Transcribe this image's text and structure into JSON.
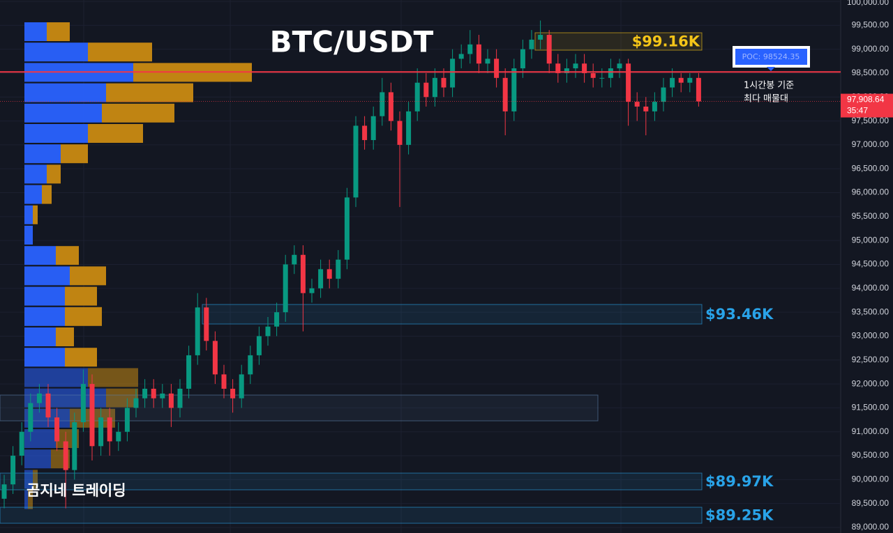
{
  "chart_data": {
    "type": "candlestick",
    "title": "BTC/USDT",
    "watermark": "곰지네 트레이딩",
    "up_color": "#089981",
    "down_color": "#f23645",
    "ylim": [
      89000,
      100000
    ],
    "yticks": [
      {
        "value": 89000,
        "label": "89,000.00"
      },
      {
        "value": 89500,
        "label": "89,500.00"
      },
      {
        "value": 90000,
        "label": "90,000.00"
      },
      {
        "value": 90500,
        "label": "90,500.00"
      },
      {
        "value": 91000,
        "label": "91,000.00"
      },
      {
        "value": 91500,
        "label": "91,500.00"
      },
      {
        "value": 92000,
        "label": "92,000.00"
      },
      {
        "value": 92500,
        "label": "92,500.00"
      },
      {
        "value": 93000,
        "label": "93,000.00"
      },
      {
        "value": 93500,
        "label": "93,500.00"
      },
      {
        "value": 94000,
        "label": "94,000.00"
      },
      {
        "value": 94500,
        "label": "94,500.00"
      },
      {
        "value": 95000,
        "label": "95,000.00"
      },
      {
        "value": 95500,
        "label": "95,500.00"
      },
      {
        "value": 96000,
        "label": "96,000.00"
      },
      {
        "value": 96500,
        "label": "96,500.00"
      },
      {
        "value": 97000,
        "label": "97,000.00"
      },
      {
        "value": 97500,
        "label": "97,500.00"
      },
      {
        "value": 98000,
        "label": "98,000.00"
      },
      {
        "value": 98500,
        "label": "98,500.00"
      },
      {
        "value": 99000,
        "label": "99,000.00"
      },
      {
        "value": 99500,
        "label": "99,500.00"
      },
      {
        "value": 100000,
        "label": "100,000.00"
      }
    ],
    "grid": true,
    "open": [
      89600,
      89900,
      90500,
      91000,
      91600,
      91800,
      91300,
      90800,
      90200,
      91200,
      92000,
      90700,
      91300,
      90800,
      91000,
      91500,
      91700,
      91900,
      91700,
      91800,
      91500,
      91900,
      92600,
      93600,
      92900,
      92200,
      91900,
      91700,
      92200,
      92600,
      93000,
      93200,
      93500,
      94500,
      94700,
      93900,
      94000,
      94400,
      94200,
      94600,
      95900,
      97400,
      97100,
      97600,
      98100,
      97500,
      97000,
      97700,
      98300,
      98000,
      98400,
      98200,
      98800,
      98900,
      99100,
      98700,
      98800,
      98400,
      97700,
      98600,
      99000,
      99200,
      99300,
      98700,
      98500,
      98600,
      98700,
      98500,
      98400,
      98400,
      98600,
      98700,
      97900,
      97800,
      97700,
      97900,
      98200,
      98400,
      98300,
      98400
    ],
    "high": [
      90100,
      90700,
      91200,
      91800,
      92000,
      92000,
      91500,
      91000,
      91400,
      92300,
      92200,
      91500,
      91500,
      91200,
      91700,
      91900,
      92100,
      92100,
      92000,
      92000,
      92100,
      92800,
      93900,
      93800,
      93100,
      92400,
      92100,
      92400,
      92800,
      93200,
      93400,
      93700,
      94700,
      94900,
      94900,
      94200,
      94600,
      94600,
      94800,
      96100,
      97600,
      97600,
      97800,
      98400,
      98300,
      97700,
      97900,
      98600,
      98500,
      98600,
      98600,
      99000,
      99100,
      99400,
      99300,
      99000,
      99000,
      98600,
      98800,
      99200,
      99400,
      99600,
      99400,
      98900,
      98800,
      98900,
      98900,
      98700,
      98600,
      98800,
      98800,
      98800,
      98100,
      98000,
      98100,
      98400,
      98600,
      98500,
      98500,
      98500
    ],
    "low": [
      89400,
      89700,
      90300,
      90800,
      91400,
      91100,
      90600,
      89400,
      90000,
      91000,
      90400,
      90500,
      90500,
      90600,
      90800,
      91300,
      91500,
      91500,
      91500,
      91100,
      91300,
      91700,
      92400,
      92700,
      92000,
      91700,
      91400,
      91500,
      92000,
      92400,
      92800,
      93000,
      93300,
      94300,
      93100,
      93700,
      93800,
      94000,
      94000,
      94400,
      95700,
      96900,
      96900,
      97400,
      97300,
      95700,
      96800,
      97500,
      97800,
      97800,
      98000,
      98000,
      98600,
      98700,
      98500,
      98500,
      98200,
      97200,
      97500,
      98400,
      98800,
      99000,
      98500,
      98300,
      98300,
      98400,
      98300,
      98200,
      98200,
      98200,
      98400,
      97400,
      97500,
      97200,
      97500,
      97700,
      98000,
      98100,
      98100,
      97800
    ],
    "close": [
      89900,
      90500,
      91000,
      91600,
      91800,
      91300,
      90800,
      90200,
      91200,
      92000,
      90700,
      91300,
      90800,
      91000,
      91500,
      91700,
      91900,
      91700,
      91800,
      91500,
      91900,
      92600,
      93600,
      92900,
      92200,
      91900,
      91700,
      92200,
      92600,
      93000,
      93200,
      93500,
      94500,
      94700,
      93900,
      94000,
      94400,
      94200,
      94600,
      95900,
      97400,
      97100,
      97600,
      98100,
      97500,
      97000,
      97700,
      98300,
      98000,
      98400,
      98200,
      98800,
      98900,
      99100,
      98700,
      98800,
      98400,
      97700,
      98600,
      99000,
      99200,
      99300,
      98700,
      98500,
      98600,
      98700,
      98500,
      98400,
      98400,
      98600,
      98700,
      97900,
      97800,
      97700,
      97900,
      98200,
      98400,
      98300,
      98400,
      97908.64
    ],
    "volume_profile": {
      "series": [
        {
          "color": "#2962ff",
          "values": [
            32,
            91,
            156,
            117,
            111,
            91,
            52,
            32,
            25,
            12,
            12,
            45,
            65,
            58,
            58,
            45,
            58,
            91,
            117,
            65,
            45,
            38,
            12,
            5
          ]
        },
        {
          "color": "#c98a12",
          "values": [
            33,
            92,
            170,
            125,
            104,
            79,
            39,
            20,
            14,
            7,
            0,
            33,
            52,
            46,
            53,
            26,
            46,
            72,
            46,
            65,
            33,
            27,
            7,
            7
          ]
        }
      ]
    },
    "zones": [
      {
        "label": "$99.16K",
        "low": 98980,
        "high": 99344,
        "color": "#f5c518"
      },
      {
        "label": "$93.46K",
        "low": 93254,
        "high": 93662,
        "color": "#29a3e8"
      },
      {
        "low": 91229,
        "high": 91768,
        "color": "#5b7ea8"
      },
      {
        "label": "$89.97K",
        "low": 89787,
        "high": 90136,
        "color": "#29a3e8"
      },
      {
        "label": "$89.25K",
        "low": 89087,
        "high": 89422,
        "color": "#29a3e8"
      }
    ],
    "poc": {
      "value": 98524.35,
      "label": "POC: 98524.35",
      "color": "#f23645",
      "note": [
        "1시간봉 기준",
        "최다 매물대"
      ]
    },
    "last_price": {
      "value": 97908.64,
      "label": "97,908.64",
      "countdown": "35:47",
      "color": "#f23645"
    }
  }
}
